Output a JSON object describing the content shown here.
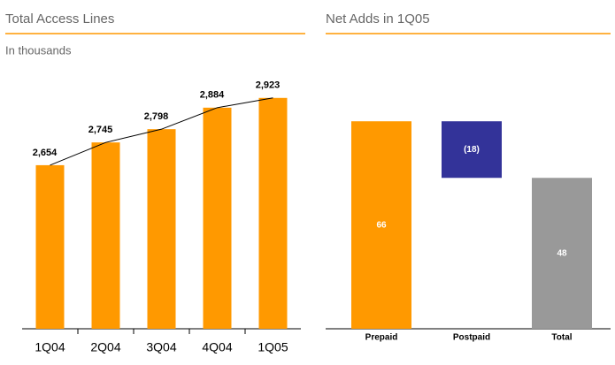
{
  "chart_data": [
    {
      "type": "bar",
      "title": "Total Access Lines",
      "subtitle": "In thousands",
      "categories": [
        "1Q04",
        "2Q04",
        "3Q04",
        "4Q04",
        "1Q05"
      ],
      "values": [
        2654,
        2745,
        2798,
        2884,
        2923
      ],
      "value_labels": [
        "2,654",
        "2,745",
        "2,798",
        "2,884",
        "2,923"
      ],
      "color": "#ff9900",
      "line_color": "#000000",
      "ylim": [
        2000,
        3000
      ]
    },
    {
      "type": "waterfall",
      "title": "Net Adds in 1Q05",
      "categories": [
        "Prepaid",
        "Postpaid",
        "Total"
      ],
      "values": [
        66,
        -18,
        48
      ],
      "value_labels": [
        "66",
        "(18)",
        "48"
      ],
      "colors": [
        "#ff9900",
        "#333399",
        "#999999"
      ],
      "ylim": [
        0,
        70
      ]
    }
  ]
}
